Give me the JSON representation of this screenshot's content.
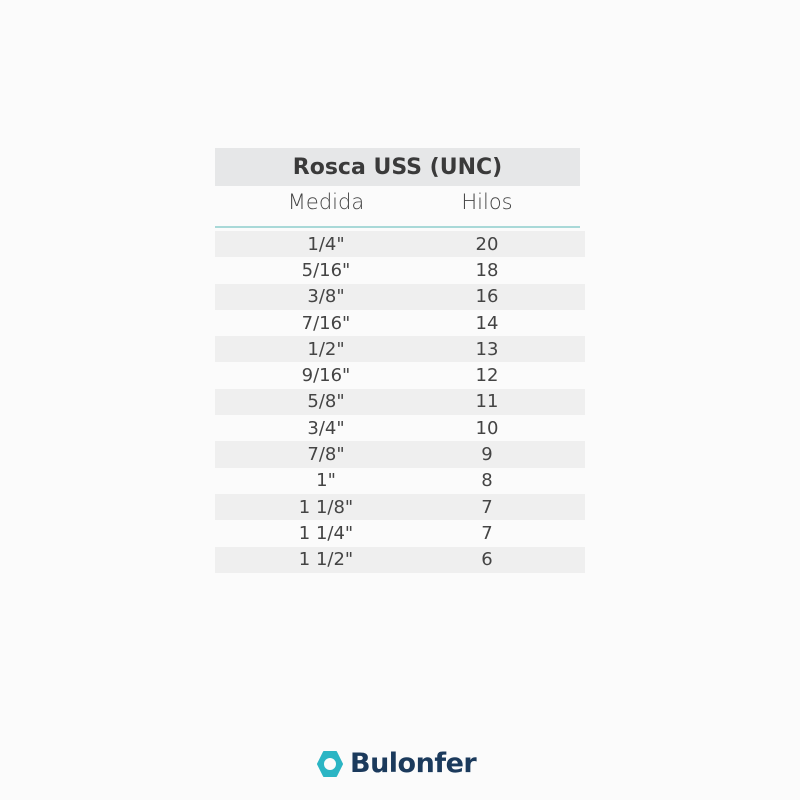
{
  "table": {
    "title": "Rosca USS (UNC)",
    "headers": [
      "Medida",
      "Hilos"
    ],
    "rows": [
      {
        "medida": "1/4\"",
        "hilos": "20"
      },
      {
        "medida": "5/16\"",
        "hilos": "18"
      },
      {
        "medida": "3/8\"",
        "hilos": "16"
      },
      {
        "medida": "7/16\"",
        "hilos": "14"
      },
      {
        "medida": "1/2\"",
        "hilos": "13"
      },
      {
        "medida": "9/16\"",
        "hilos": "12"
      },
      {
        "medida": "5/8\"",
        "hilos": "11"
      },
      {
        "medida": "3/4\"",
        "hilos": "10"
      },
      {
        "medida": "7/8\"",
        "hilos": "9"
      },
      {
        "medida": "1\"",
        "hilos": "8"
      },
      {
        "medida": "1 1/8\"",
        "hilos": "7"
      },
      {
        "medida": "1 1/4\"",
        "hilos": "7"
      },
      {
        "medida": "1 1/2\"",
        "hilos": "6"
      }
    ]
  },
  "brand": {
    "name": "Bulonfer",
    "icon": "hexagon-nut-icon",
    "accent_color": "#2bb5c4",
    "text_color": "#1b3a5c"
  }
}
